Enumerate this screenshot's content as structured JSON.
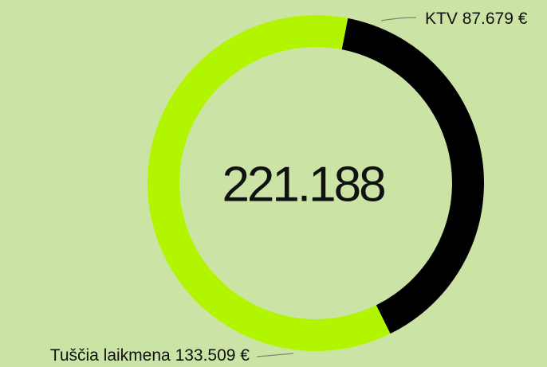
{
  "chart_data": {
    "type": "pie",
    "donut": true,
    "categories": [
      "KTV",
      "Tuščia laikmena"
    ],
    "values": [
      87679,
      133509
    ],
    "value_labels": [
      "87.679 €",
      "133.509 €"
    ],
    "colors": [
      "#000000",
      "#b2f500"
    ],
    "center_label": "221.188"
  }
}
